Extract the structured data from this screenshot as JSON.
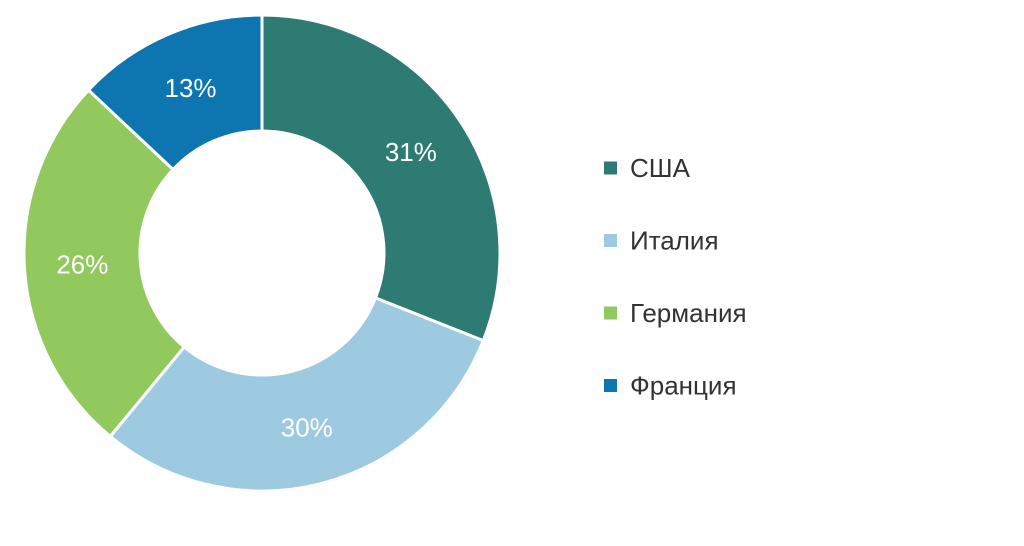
{
  "chart_data": {
    "type": "pie",
    "donut": true,
    "categories": [
      "США",
      "Италия",
      "Германия",
      "Франция"
    ],
    "values": [
      31,
      30,
      26,
      13
    ],
    "data_labels": [
      "31%",
      "30%",
      "26%",
      "13%"
    ],
    "colors": [
      "#2e7b73",
      "#9ecae1",
      "#92c95e",
      "#0d75b0"
    ],
    "legend_position": "right",
    "start_angle_deg": 0,
    "direction": "clockwise"
  }
}
